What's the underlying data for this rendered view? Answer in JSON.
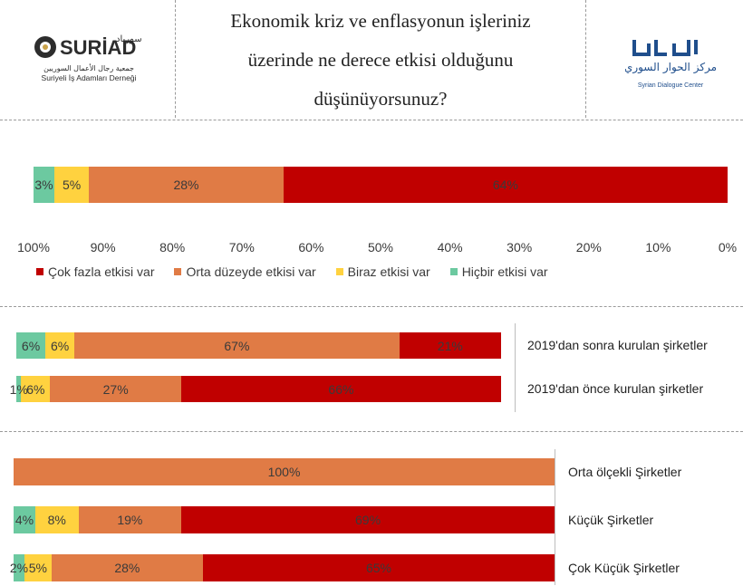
{
  "title_lines": [
    "Ekonomik kriz ve enflasyonun işleriniz",
    "üzerinde ne derece etkisi olduğunu",
    "düşünüyorsunuz?"
  ],
  "logos": {
    "left": {
      "name": "SURİAD",
      "arabic": "سورياد",
      "arabic_sub": "جمعية رجال الأعمال السوريين",
      "subtitle": "Suriyeli İş Adamları Derneği"
    },
    "right": {
      "arabic": "مركز الحوار السوري",
      "subtitle": "Syrian Dialogue Center"
    }
  },
  "colors": {
    "cok_fazla": "#c00000",
    "orta": "#e07b45",
    "biraz": "#ffd23f",
    "hicbir": "#6cc9a0"
  },
  "legend": [
    {
      "label": "Çok fazla etkisi var",
      "color": "#c00000"
    },
    {
      "label": "Orta düzeyde etkisi var",
      "color": "#e07b45"
    },
    {
      "label": "Biraz etkisi var",
      "color": "#ffd23f"
    },
    {
      "label": "Hiçbir etkisi var",
      "color": "#6cc9a0"
    }
  ],
  "axis_ticks": [
    "100%",
    "90%",
    "80%",
    "70%",
    "60%",
    "50%",
    "40%",
    "30%",
    "20%",
    "10%",
    "0%"
  ],
  "chart_data": [
    {
      "type": "bar",
      "orientation": "horizontal-stacked",
      "direction": "right-to-left",
      "xlim": [
        0,
        100
      ],
      "categories": [
        ""
      ],
      "series": [
        {
          "name": "Çok fazla etkisi var",
          "values": [
            64
          ]
        },
        {
          "name": "Orta düzeyde etkisi var",
          "values": [
            28
          ]
        },
        {
          "name": "Biraz etkisi var",
          "values": [
            5
          ]
        },
        {
          "name": "Hiçbir etkisi var",
          "values": [
            3
          ]
        }
      ],
      "legend": "bottom"
    },
    {
      "type": "bar",
      "orientation": "horizontal-stacked",
      "direction": "right-to-left",
      "categories": [
        "2019'dan sonra kurulan şirketler",
        "2019'dan önce kurulan şirketler"
      ],
      "series": [
        {
          "name": "Çok fazla etkisi var",
          "values": [
            21,
            66
          ]
        },
        {
          "name": "Orta düzeyde etkisi var",
          "values": [
            67,
            27
          ]
        },
        {
          "name": "Biraz etkisi var",
          "values": [
            6,
            6
          ]
        },
        {
          "name": "Hiçbir etkisi var",
          "values": [
            6,
            1
          ]
        }
      ]
    },
    {
      "type": "bar",
      "orientation": "horizontal-stacked",
      "direction": "right-to-left",
      "categories": [
        "Orta ölçekli Şirketler",
        "Küçük Şirketler",
        "Çok Küçük Şirketler"
      ],
      "series": [
        {
          "name": "Çok fazla etkisi var",
          "values": [
            0,
            69,
            65
          ]
        },
        {
          "name": "Orta düzeyde etkisi var",
          "values": [
            100,
            19,
            28
          ]
        },
        {
          "name": "Biraz etkisi var",
          "values": [
            0,
            8,
            5
          ]
        },
        {
          "name": "Hiçbir etkisi var",
          "values": [
            0,
            4,
            2
          ]
        }
      ]
    }
  ]
}
